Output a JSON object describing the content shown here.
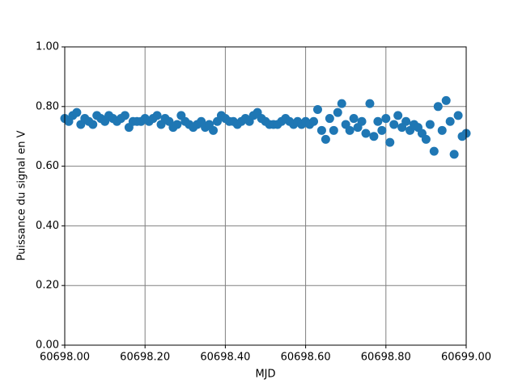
{
  "chart_data": {
    "type": "scatter",
    "x_label": "MJD",
    "y_label": "Puissance du signal en V",
    "color": "#1f77b4",
    "grid": true,
    "xlim": [
      60698,
      60699
    ],
    "ylim": [
      0,
      1
    ],
    "xticks": [
      {
        "value": 60698,
        "label": "60698.00"
      },
      {
        "value": 60698.2,
        "label": "60698.20"
      },
      {
        "value": 60698.4,
        "label": "60698.40"
      },
      {
        "value": 60698.6,
        "label": "60698.60"
      },
      {
        "value": 60698.8,
        "label": "60698.80"
      },
      {
        "value": 60699,
        "label": "60699.00"
      }
    ],
    "yticks": [
      {
        "value": 0,
        "label": "0.00"
      },
      {
        "value": 0.2,
        "label": "0.20"
      },
      {
        "value": 0.4,
        "label": "0.40"
      },
      {
        "value": 0.6,
        "label": "0.60"
      },
      {
        "value": 0.8,
        "label": "0.80"
      },
      {
        "value": 1,
        "label": "1.00"
      }
    ],
    "x": [
      60698.0,
      60698.01,
      60698.02,
      60698.03,
      60698.04,
      60698.05,
      60698.06,
      60698.07,
      60698.08,
      60698.09,
      60698.1,
      60698.11,
      60698.12,
      60698.13,
      60698.14,
      60698.15,
      60698.16,
      60698.17,
      60698.18,
      60698.19,
      60698.2,
      60698.21,
      60698.22,
      60698.23,
      60698.24,
      60698.25,
      60698.26,
      60698.27,
      60698.28,
      60698.29,
      60698.3,
      60698.31,
      60698.32,
      60698.33,
      60698.34,
      60698.35,
      60698.36,
      60698.37,
      60698.38,
      60698.39,
      60698.4,
      60698.41,
      60698.42,
      60698.43,
      60698.44,
      60698.45,
      60698.46,
      60698.47,
      60698.48,
      60698.49,
      60698.5,
      60698.51,
      60698.52,
      60698.53,
      60698.54,
      60698.55,
      60698.56,
      60698.57,
      60698.58,
      60698.59,
      60698.6,
      60698.61,
      60698.62,
      60698.63,
      60698.64,
      60698.65,
      60698.66,
      60698.67,
      60698.68,
      60698.69,
      60698.7,
      60698.71,
      60698.72,
      60698.73,
      60698.74,
      60698.75,
      60698.76,
      60698.77,
      60698.78,
      60698.79,
      60698.8,
      60698.81,
      60698.82,
      60698.83,
      60698.84,
      60698.85,
      60698.86,
      60698.87,
      60698.88,
      60698.89,
      60698.9,
      60698.91,
      60698.92,
      60698.93,
      60698.94,
      60698.95,
      60698.96,
      60698.97,
      60698.98,
      60698.99,
      60699.0
    ],
    "values": [
      0.76,
      0.75,
      0.77,
      0.78,
      0.74,
      0.76,
      0.75,
      0.74,
      0.77,
      0.76,
      0.75,
      0.77,
      0.76,
      0.75,
      0.76,
      0.77,
      0.73,
      0.75,
      0.75,
      0.75,
      0.76,
      0.75,
      0.76,
      0.77,
      0.74,
      0.76,
      0.75,
      0.73,
      0.74,
      0.77,
      0.75,
      0.74,
      0.73,
      0.74,
      0.75,
      0.73,
      0.74,
      0.72,
      0.75,
      0.77,
      0.76,
      0.75,
      0.75,
      0.74,
      0.75,
      0.76,
      0.75,
      0.77,
      0.78,
      0.76,
      0.75,
      0.74,
      0.74,
      0.74,
      0.75,
      0.76,
      0.75,
      0.74,
      0.75,
      0.74,
      0.75,
      0.74,
      0.75,
      0.79,
      0.72,
      0.69,
      0.76,
      0.72,
      0.78,
      0.81,
      0.74,
      0.72,
      0.76,
      0.73,
      0.75,
      0.71,
      0.81,
      0.7,
      0.75,
      0.72,
      0.76,
      0.68,
      0.74,
      0.77,
      0.73,
      0.75,
      0.72,
      0.74,
      0.73,
      0.71,
      0.69,
      0.74,
      0.65,
      0.8,
      0.72,
      0.82,
      0.75,
      0.64,
      0.77,
      0.7,
      0.71
    ]
  }
}
